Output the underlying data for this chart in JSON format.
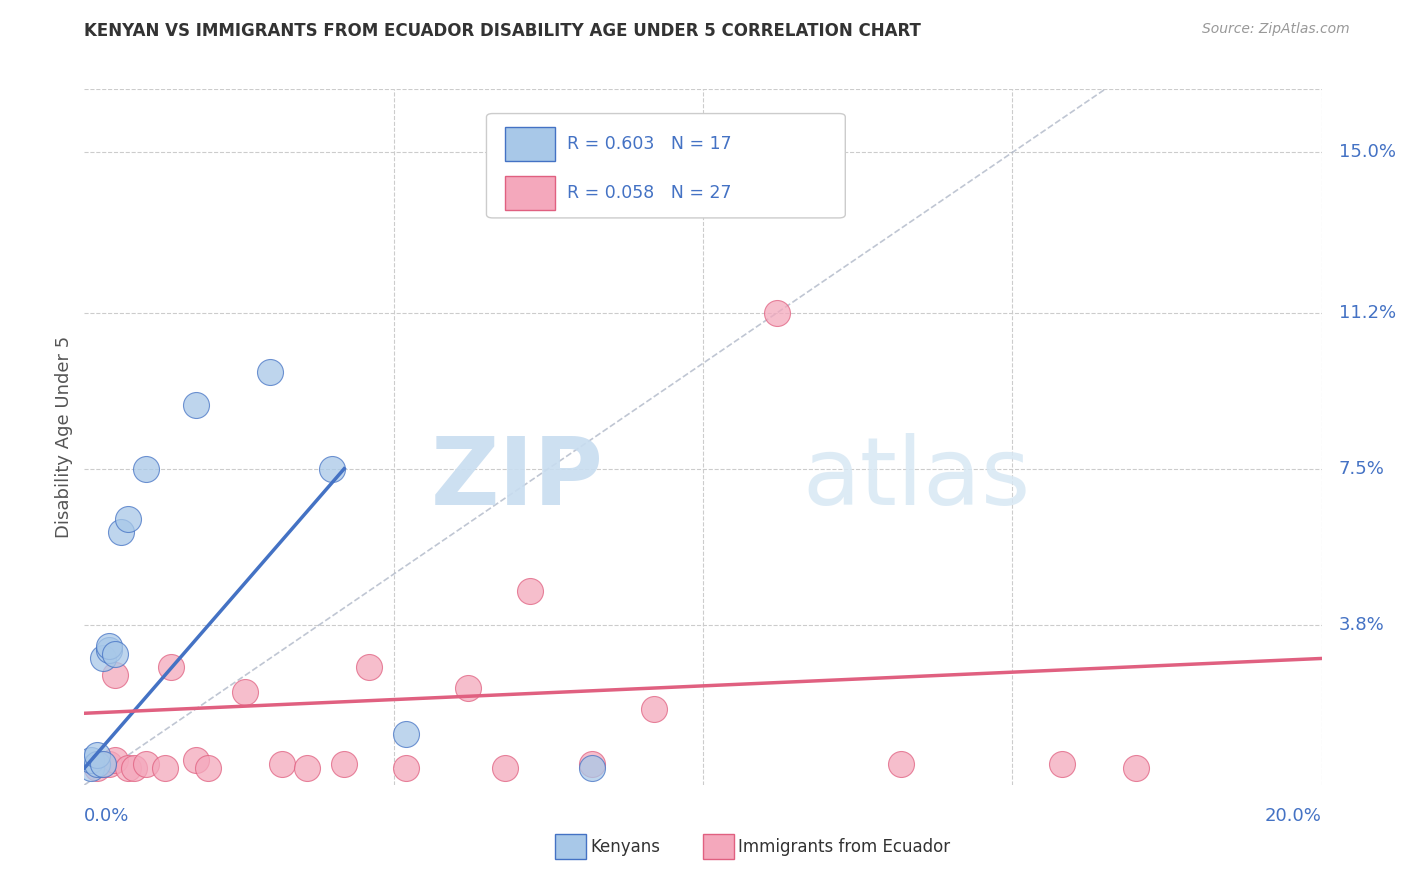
{
  "title": "KENYAN VS IMMIGRANTS FROM ECUADOR DISABILITY AGE UNDER 5 CORRELATION CHART",
  "source": "Source: ZipAtlas.com",
  "ylabel": "Disability Age Under 5",
  "ytick_values": [
    0.038,
    0.075,
    0.112,
    0.15
  ],
  "ytick_labels": [
    "3.8%",
    "7.5%",
    "11.2%",
    "15.0%"
  ],
  "xlim": [
    0.0,
    0.2
  ],
  "ylim": [
    0.0,
    0.165
  ],
  "kenyan_color": "#a8c8e8",
  "ecuador_color": "#f4a8bc",
  "kenyan_line_color": "#4472c4",
  "ecuador_line_color": "#e06080",
  "diagonal_color": "#b0b8c8",
  "watermark_zip": "ZIP",
  "watermark_atlas": "atlas",
  "background_color": "#ffffff",
  "kenyan_points": [
    [
      0.001,
      0.004
    ],
    [
      0.001,
      0.006
    ],
    [
      0.002,
      0.005
    ],
    [
      0.002,
      0.007
    ],
    [
      0.003,
      0.005
    ],
    [
      0.003,
      0.03
    ],
    [
      0.004,
      0.032
    ],
    [
      0.004,
      0.033
    ],
    [
      0.005,
      0.031
    ],
    [
      0.006,
      0.06
    ],
    [
      0.007,
      0.063
    ],
    [
      0.01,
      0.075
    ],
    [
      0.018,
      0.09
    ],
    [
      0.03,
      0.098
    ],
    [
      0.04,
      0.075
    ],
    [
      0.052,
      0.012
    ],
    [
      0.082,
      0.004
    ]
  ],
  "ecuador_points": [
    [
      0.002,
      0.004
    ],
    [
      0.003,
      0.005
    ],
    [
      0.004,
      0.005
    ],
    [
      0.005,
      0.006
    ],
    [
      0.005,
      0.026
    ],
    [
      0.007,
      0.004
    ],
    [
      0.008,
      0.004
    ],
    [
      0.01,
      0.005
    ],
    [
      0.013,
      0.004
    ],
    [
      0.014,
      0.028
    ],
    [
      0.018,
      0.006
    ],
    [
      0.02,
      0.004
    ],
    [
      0.026,
      0.022
    ],
    [
      0.032,
      0.005
    ],
    [
      0.036,
      0.004
    ],
    [
      0.042,
      0.005
    ],
    [
      0.046,
      0.028
    ],
    [
      0.052,
      0.004
    ],
    [
      0.062,
      0.023
    ],
    [
      0.068,
      0.004
    ],
    [
      0.072,
      0.046
    ],
    [
      0.082,
      0.005
    ],
    [
      0.092,
      0.018
    ],
    [
      0.112,
      0.112
    ],
    [
      0.132,
      0.005
    ],
    [
      0.158,
      0.005
    ],
    [
      0.17,
      0.004
    ]
  ],
  "kenyan_line": [
    [
      0.0,
      0.004
    ],
    [
      0.042,
      0.075
    ]
  ],
  "ecuador_line": [
    [
      0.0,
      0.017
    ],
    [
      0.2,
      0.03
    ]
  ],
  "legend_R1": "R = 0.603",
  "legend_N1": "N = 17",
  "legend_R2": "R = 0.058",
  "legend_N2": "N = 27"
}
